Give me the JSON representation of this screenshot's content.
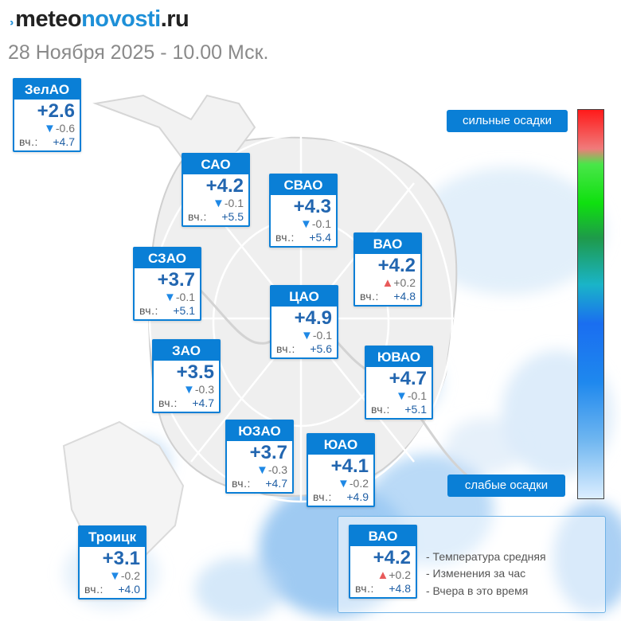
{
  "header": {
    "logo_mark": "˒",
    "logo_meteo": "meteo",
    "logo_novosti": "novosti",
    "logo_ru": ".ru",
    "subtitle": "28 Ноября 2025 - 10.00 Мск."
  },
  "colors": {
    "accent": "#0a7fd6",
    "temp": "#2266b0",
    "down": "#1e88e5",
    "up": "#e85a5a"
  },
  "yesterday_label": "вч.:",
  "districts": [
    {
      "name": "ЗелАО",
      "temp": "+2.6",
      "arrow": "▼",
      "dir": "down",
      "change": "-0.6",
      "yesterday": "+4.7"
    },
    {
      "name": "САО",
      "temp": "+4.2",
      "arrow": "▼",
      "dir": "down",
      "change": "-0.1",
      "yesterday": "+5.5"
    },
    {
      "name": "СВАО",
      "temp": "+4.3",
      "arrow": "▼",
      "dir": "down",
      "change": "-0.1",
      "yesterday": "+5.4"
    },
    {
      "name": "ВАО",
      "temp": "+4.2",
      "arrow": "▲",
      "dir": "up",
      "change": "+0.2",
      "yesterday": "+4.8"
    },
    {
      "name": "СЗАО",
      "temp": "+3.7",
      "arrow": "▼",
      "dir": "down",
      "change": "-0.1",
      "yesterday": "+5.1"
    },
    {
      "name": "ЦАО",
      "temp": "+4.9",
      "arrow": "▼",
      "dir": "down",
      "change": "-0.1",
      "yesterday": "+5.6"
    },
    {
      "name": "ЗАО",
      "temp": "+3.5",
      "arrow": "▼",
      "dir": "down",
      "change": "-0.3",
      "yesterday": "+4.7"
    },
    {
      "name": "ЮВАО",
      "temp": "+4.7",
      "arrow": "▼",
      "dir": "down",
      "change": "-0.1",
      "yesterday": "+5.1"
    },
    {
      "name": "ЮЗАО",
      "temp": "+3.7",
      "arrow": "▼",
      "dir": "down",
      "change": "-0.3",
      "yesterday": "+4.7"
    },
    {
      "name": "ЮАО",
      "temp": "+4.1",
      "arrow": "▼",
      "dir": "down",
      "change": "-0.2",
      "yesterday": "+4.9"
    },
    {
      "name": "Троицк",
      "temp": "+3.1",
      "arrow": "▼",
      "dir": "down",
      "change": "-0.2",
      "yesterday": "+4.0"
    }
  ],
  "precip_scale": {
    "top_label": "сильные осадки",
    "bottom_label": "слабые осадки"
  },
  "legend": {
    "example": {
      "name": "ВАО",
      "temp": "+4.2",
      "arrow": "▲",
      "dir": "up",
      "change": "+0.2",
      "yesterday": "+4.8"
    },
    "items": [
      "- Температура средняя",
      "- Изменения за час",
      "- Вчера в это время"
    ]
  }
}
